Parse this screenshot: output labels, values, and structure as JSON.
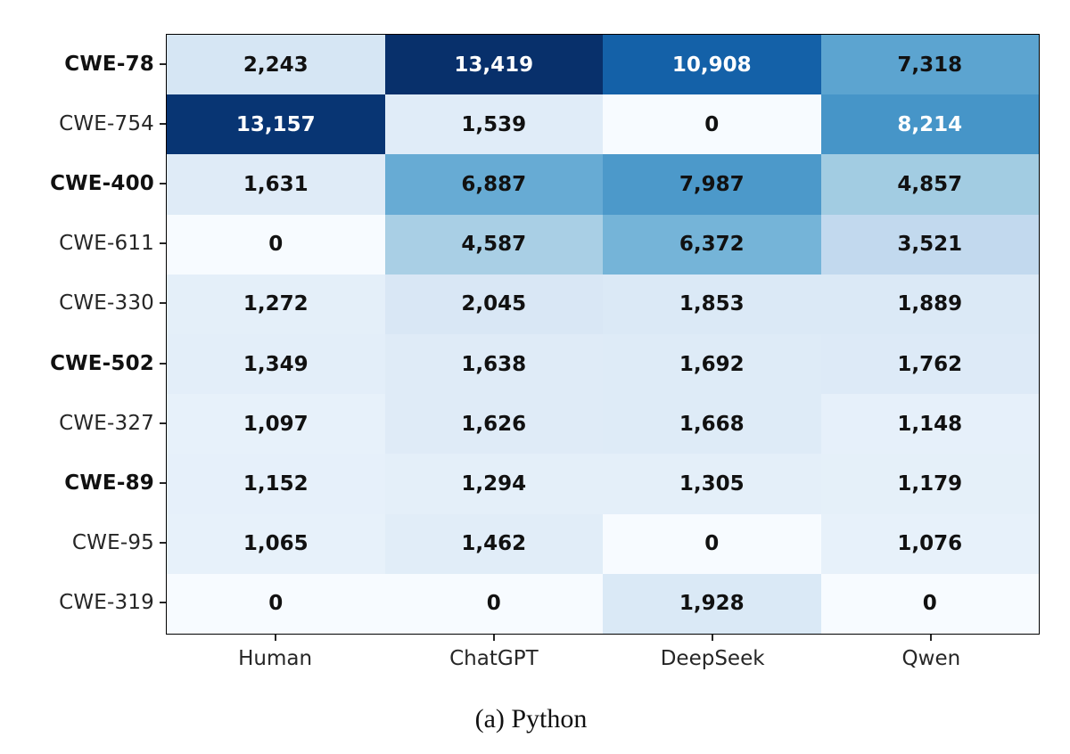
{
  "chart_data": {
    "type": "heatmap",
    "caption": "(a) Python",
    "columns": [
      "Human",
      "ChatGPT",
      "DeepSeek",
      "Qwen"
    ],
    "rows": [
      "CWE-78",
      "CWE-754",
      "CWE-400",
      "CWE-611",
      "CWE-330",
      "CWE-502",
      "CWE-327",
      "CWE-89",
      "CWE-95",
      "CWE-319"
    ],
    "bold_rows": [
      "CWE-78",
      "CWE-400",
      "CWE-502",
      "CWE-89"
    ],
    "values": [
      [
        2243,
        13419,
        10908,
        7318
      ],
      [
        13157,
        1539,
        0,
        8214
      ],
      [
        1631,
        6887,
        7987,
        4857
      ],
      [
        0,
        4587,
        6372,
        3521
      ],
      [
        1272,
        2045,
        1853,
        1889
      ],
      [
        1349,
        1638,
        1692,
        1762
      ],
      [
        1097,
        1626,
        1668,
        1148
      ],
      [
        1152,
        1294,
        1305,
        1179
      ],
      [
        1065,
        1462,
        0,
        1076
      ],
      [
        0,
        0,
        1928,
        0
      ]
    ],
    "vmin": 0,
    "vmax": 13419,
    "colormap": "Blues",
    "color_stops": [
      "#f7fbff",
      "#deebf7",
      "#c6dbef",
      "#9ecae1",
      "#6baed6",
      "#4292c6",
      "#2171b5",
      "#08519c",
      "#08306b"
    ],
    "cell_text_dark": "#111111",
    "cell_text_light": "#ffffff",
    "legend": "none",
    "grid": "off"
  }
}
